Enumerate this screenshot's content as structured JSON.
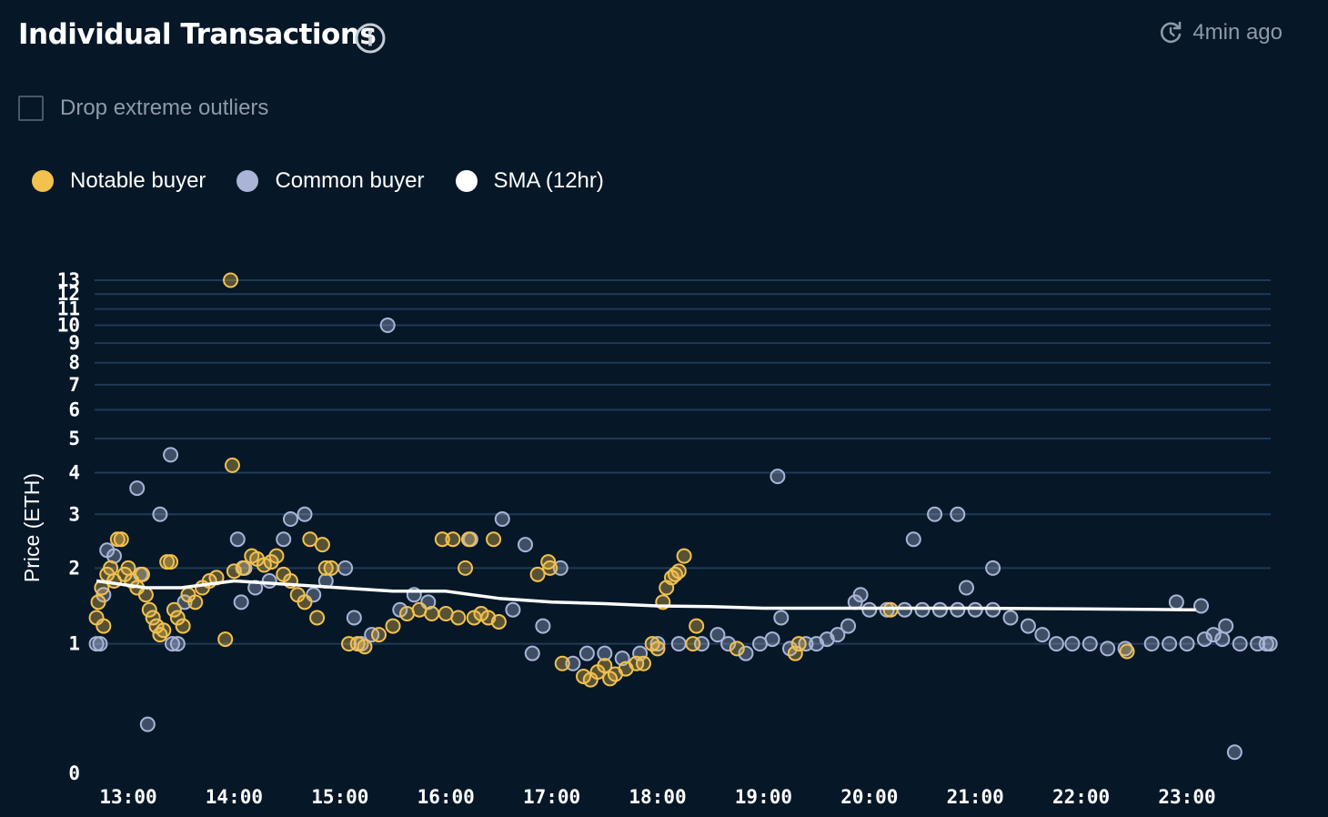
{
  "header": {
    "title": "Individual Transactions",
    "updated": "4min ago"
  },
  "filter": {
    "drop_outliers_label": "Drop extreme outliers",
    "checked": false
  },
  "legend": [
    {
      "label": "Notable buyer",
      "color": "#f2c14e"
    },
    {
      "label": "Common buyer",
      "color": "#a9b4d6"
    },
    {
      "label": "SMA (12hr)",
      "color": "#ffffff"
    }
  ],
  "colors": {
    "background": "#061727",
    "grid": "#1f3a57",
    "notable": "#f2c14e",
    "common": "#a9b4d6",
    "sma": "#ffffff",
    "muted_text": "#8e9aa8"
  },
  "chart_data": {
    "type": "scatter",
    "ylabel": "Price (ETH)",
    "xlabel": "",
    "y_scale": "log1p",
    "yticks": [
      0,
      1,
      2,
      3,
      4,
      5,
      6,
      7,
      8,
      9,
      10,
      11,
      12,
      13
    ],
    "xticks": [
      "13:00",
      "14:00",
      "15:00",
      "16:00",
      "17:00",
      "18:00",
      "19:00",
      "20:00",
      "21:00",
      "22:00",
      "23:00"
    ],
    "xlim": [
      "12:40",
      "23:48"
    ],
    "ylim": [
      0,
      13
    ],
    "grid": true,
    "legend_position": "top-left",
    "series": [
      {
        "name": "Notable buyer",
        "points": [
          [
            "12:42",
            1.3
          ],
          [
            "12:43",
            1.5
          ],
          [
            "12:45",
            1.7
          ],
          [
            "12:46",
            1.2
          ],
          [
            "12:48",
            1.9
          ],
          [
            "12:50",
            2.0
          ],
          [
            "12:52",
            1.8
          ],
          [
            "12:54",
            2.5
          ],
          [
            "12:56",
            2.5
          ],
          [
            "12:58",
            1.9
          ],
          [
            "13:00",
            2.0
          ],
          [
            "13:02",
            1.8
          ],
          [
            "13:05",
            1.7
          ],
          [
            "13:08",
            1.9
          ],
          [
            "13:10",
            1.6
          ],
          [
            "13:12",
            1.4
          ],
          [
            "13:14",
            1.3
          ],
          [
            "13:16",
            1.2
          ],
          [
            "13:18",
            1.1
          ],
          [
            "13:20",
            1.15
          ],
          [
            "13:22",
            2.1
          ],
          [
            "13:24",
            2.1
          ],
          [
            "13:26",
            1.4
          ],
          [
            "13:28",
            1.3
          ],
          [
            "13:31",
            1.2
          ],
          [
            "13:34",
            1.6
          ],
          [
            "13:38",
            1.5
          ],
          [
            "13:42",
            1.7
          ],
          [
            "13:46",
            1.8
          ],
          [
            "13:50",
            1.85
          ],
          [
            "13:55",
            1.05
          ],
          [
            "13:58",
            13.0
          ],
          [
            "13:59",
            4.2
          ],
          [
            "14:00",
            1.95
          ],
          [
            "14:05",
            2.0
          ],
          [
            "14:10",
            2.2
          ],
          [
            "14:13",
            2.15
          ],
          [
            "14:17",
            2.05
          ],
          [
            "14:21",
            2.1
          ],
          [
            "14:24",
            2.2
          ],
          [
            "14:28",
            1.9
          ],
          [
            "14:32",
            1.8
          ],
          [
            "14:36",
            1.6
          ],
          [
            "14:40",
            1.5
          ],
          [
            "14:43",
            2.5
          ],
          [
            "14:47",
            1.3
          ],
          [
            "14:50",
            2.4
          ],
          [
            "14:52",
            2.0
          ],
          [
            "14:55",
            2.0
          ],
          [
            "15:05",
            1.0
          ],
          [
            "15:10",
            1.0
          ],
          [
            "15:14",
            0.97
          ],
          [
            "15:22",
            1.1
          ],
          [
            "15:30",
            1.2
          ],
          [
            "15:38",
            1.35
          ],
          [
            "15:45",
            1.4
          ],
          [
            "15:52",
            1.35
          ],
          [
            "15:58",
            2.5
          ],
          [
            "16:00",
            1.35
          ],
          [
            "16:04",
            2.5
          ],
          [
            "16:07",
            1.3
          ],
          [
            "16:11",
            2.0
          ],
          [
            "16:13",
            2.5
          ],
          [
            "16:16",
            1.3
          ],
          [
            "16:20",
            1.35
          ],
          [
            "16:24",
            1.3
          ],
          [
            "16:27",
            2.5
          ],
          [
            "16:30",
            1.25
          ],
          [
            "16:52",
            1.9
          ],
          [
            "16:58",
            2.1
          ],
          [
            "16:59",
            2.0
          ],
          [
            "17:06",
            0.8
          ],
          [
            "17:18",
            0.68
          ],
          [
            "17:22",
            0.65
          ],
          [
            "17:26",
            0.72
          ],
          [
            "17:30",
            0.78
          ],
          [
            "17:33",
            0.66
          ],
          [
            "17:36",
            0.7
          ],
          [
            "17:42",
            0.75
          ],
          [
            "17:48",
            0.8
          ],
          [
            "17:52",
            0.8
          ],
          [
            "17:57",
            1.0
          ],
          [
            "18:00",
            0.95
          ],
          [
            "18:03",
            1.5
          ],
          [
            "18:05",
            1.7
          ],
          [
            "18:08",
            1.85
          ],
          [
            "18:10",
            1.9
          ],
          [
            "18:12",
            1.95
          ],
          [
            "18:15",
            2.2
          ],
          [
            "18:20",
            1.0
          ],
          [
            "18:22",
            1.2
          ],
          [
            "18:45",
            0.95
          ],
          [
            "19:18",
            0.9
          ],
          [
            "19:20",
            1.0
          ],
          [
            "20:12",
            1.4
          ],
          [
            "22:26",
            0.92
          ]
        ]
      },
      {
        "name": "Common buyer",
        "points": [
          [
            "12:42",
            1.0
          ],
          [
            "12:44",
            1.0
          ],
          [
            "12:46",
            1.6
          ],
          [
            "12:48",
            2.3
          ],
          [
            "12:52",
            2.2
          ],
          [
            "13:05",
            3.6
          ],
          [
            "13:07",
            1.9
          ],
          [
            "13:11",
            0.3
          ],
          [
            "13:18",
            3.0
          ],
          [
            "13:24",
            4.5
          ],
          [
            "13:25",
            1.0
          ],
          [
            "13:28",
            1.0
          ],
          [
            "13:32",
            1.5
          ],
          [
            "14:02",
            2.5
          ],
          [
            "14:04",
            1.5
          ],
          [
            "14:06",
            2.0
          ],
          [
            "14:12",
            1.7
          ],
          [
            "14:20",
            1.8
          ],
          [
            "14:28",
            2.5
          ],
          [
            "14:32",
            2.9
          ],
          [
            "14:40",
            3.0
          ],
          [
            "14:45",
            1.6
          ],
          [
            "14:52",
            1.8
          ],
          [
            "15:03",
            2.0
          ],
          [
            "15:08",
            1.3
          ],
          [
            "15:12",
            1.0
          ],
          [
            "15:18",
            1.1
          ],
          [
            "15:27",
            10.0
          ],
          [
            "15:34",
            1.4
          ],
          [
            "15:42",
            1.6
          ],
          [
            "15:50",
            1.5
          ],
          [
            "16:14",
            2.5
          ],
          [
            "16:32",
            2.9
          ],
          [
            "16:38",
            1.4
          ],
          [
            "16:45",
            2.4
          ],
          [
            "16:49",
            0.9
          ],
          [
            "16:55",
            1.2
          ],
          [
            "17:05",
            2.0
          ],
          [
            "17:12",
            0.8
          ],
          [
            "17:20",
            0.9
          ],
          [
            "17:30",
            0.9
          ],
          [
            "17:40",
            0.85
          ],
          [
            "17:50",
            0.9
          ],
          [
            "18:00",
            1.0
          ],
          [
            "18:12",
            1.0
          ],
          [
            "18:25",
            1.0
          ],
          [
            "18:34",
            1.1
          ],
          [
            "18:40",
            1.0
          ],
          [
            "18:50",
            0.9
          ],
          [
            "18:58",
            1.0
          ],
          [
            "19:05",
            1.05
          ],
          [
            "19:10",
            1.3
          ],
          [
            "19:15",
            0.95
          ],
          [
            "19:24",
            1.0
          ],
          [
            "19:30",
            1.0
          ],
          [
            "19:36",
            1.05
          ],
          [
            "19:42",
            1.1
          ],
          [
            "19:48",
            1.2
          ],
          [
            "19:52",
            1.5
          ],
          [
            "20:00",
            1.4
          ],
          [
            "20:10",
            1.4
          ],
          [
            "20:20",
            1.4
          ],
          [
            "20:30",
            1.4
          ],
          [
            "20:40",
            1.4
          ],
          [
            "20:50",
            1.4
          ],
          [
            "21:00",
            1.4
          ],
          [
            "21:10",
            1.4
          ],
          [
            "21:20",
            1.3
          ],
          [
            "21:30",
            1.2
          ],
          [
            "21:38",
            1.1
          ],
          [
            "21:46",
            1.0
          ],
          [
            "21:55",
            1.0
          ],
          [
            "22:05",
            1.0
          ],
          [
            "22:15",
            0.95
          ],
          [
            "22:25",
            0.95
          ],
          [
            "22:40",
            1.0
          ],
          [
            "22:50",
            1.0
          ],
          [
            "23:00",
            1.0
          ],
          [
            "23:10",
            1.05
          ],
          [
            "23:15",
            1.1
          ],
          [
            "23:20",
            1.05
          ],
          [
            "23:30",
            1.0
          ],
          [
            "23:40",
            1.0
          ],
          [
            "23:45",
            1.0
          ],
          [
            "23:47",
            1.0
          ],
          [
            "19:08",
            3.9
          ],
          [
            "20:25",
            2.5
          ],
          [
            "20:37",
            3.0
          ],
          [
            "20:50",
            3.0
          ],
          [
            "21:10",
            2.0
          ],
          [
            "20:55",
            1.7
          ],
          [
            "19:55",
            1.6
          ],
          [
            "23:27",
            0.12
          ],
          [
            "22:54",
            1.5
          ],
          [
            "23:08",
            1.45
          ],
          [
            "23:22",
            1.2
          ]
        ]
      }
    ],
    "sma": {
      "name": "SMA (12hr)",
      "points": [
        [
          "12:42",
          1.8
        ],
        [
          "13:10",
          1.7
        ],
        [
          "13:30",
          1.7
        ],
        [
          "14:00",
          1.8
        ],
        [
          "14:30",
          1.75
        ],
        [
          "15:00",
          1.7
        ],
        [
          "15:30",
          1.65
        ],
        [
          "16:00",
          1.65
        ],
        [
          "16:30",
          1.55
        ],
        [
          "17:00",
          1.5
        ],
        [
          "17:30",
          1.48
        ],
        [
          "18:00",
          1.45
        ],
        [
          "18:30",
          1.44
        ],
        [
          "19:00",
          1.42
        ],
        [
          "20:00",
          1.42
        ],
        [
          "21:00",
          1.42
        ],
        [
          "22:00",
          1.41
        ],
        [
          "23:00",
          1.4
        ],
        [
          "23:05",
          1.4
        ]
      ]
    }
  }
}
